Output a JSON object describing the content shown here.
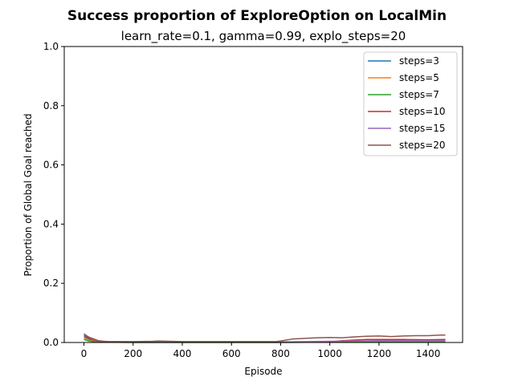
{
  "chart_data": {
    "type": "line",
    "title": "Success proportion of ExploreOption on LocalMin",
    "subtitle": "learn_rate=0.1, gamma=0.99, explo_steps=20",
    "xlabel": "Episode",
    "ylabel": "Proportion of Global Goal reached",
    "xlim": [
      -80,
      1540
    ],
    "ylim": [
      0,
      1.0
    ],
    "xticks": [
      "0",
      "200",
      "400",
      "600",
      "800",
      "1000",
      "1200",
      "1400"
    ],
    "yticks": [
      "0.0",
      "0.2",
      "0.4",
      "0.6",
      "0.8",
      "1.0"
    ],
    "legend_position": "top-right",
    "grid": false,
    "series": [
      {
        "name": "steps=3",
        "color": "#1f77b4",
        "x": [
          0,
          20,
          40,
          60,
          100,
          200,
          400,
          600,
          800,
          1000,
          1100,
          1200,
          1300,
          1400,
          1470
        ],
        "y": [
          0.02,
          0.012,
          0.006,
          0.003,
          0.002,
          0.001,
          0.001,
          0.001,
          0.001,
          0.001,
          0.001,
          0.001,
          0.001,
          0.001,
          0.001
        ]
      },
      {
        "name": "steps=5",
        "color": "#ff7f0e",
        "x": [
          0,
          20,
          40,
          60,
          100,
          200,
          400,
          600,
          800,
          1000,
          1100,
          1200,
          1300,
          1400,
          1470
        ],
        "y": [
          0.015,
          0.008,
          0.004,
          0.002,
          0.001,
          0.001,
          0.001,
          0.001,
          0.001,
          0.002,
          0.002,
          0.002,
          0.002,
          0.002,
          0.002
        ]
      },
      {
        "name": "steps=7",
        "color": "#2ca02c",
        "x": [
          0,
          20,
          40,
          60,
          100,
          200,
          400,
          600,
          800,
          1000,
          1100,
          1200,
          1300,
          1400,
          1470
        ],
        "y": [
          0.01,
          0.005,
          0.003,
          0.001,
          0.001,
          0.0,
          0.0,
          0.0,
          0.0,
          0.001,
          0.001,
          0.001,
          0.001,
          0.001,
          0.001
        ]
      },
      {
        "name": "steps=10",
        "color": "#d62728",
        "x": [
          0,
          20,
          40,
          60,
          100,
          200,
          400,
          600,
          800,
          1000,
          1050,
          1100,
          1150,
          1200,
          1300,
          1400,
          1470
        ],
        "y": [
          0.025,
          0.015,
          0.008,
          0.004,
          0.002,
          0.002,
          0.001,
          0.001,
          0.001,
          0.002,
          0.006,
          0.008,
          0.01,
          0.01,
          0.01,
          0.009,
          0.01
        ]
      },
      {
        "name": "steps=15",
        "color": "#9467bd",
        "x": [
          0,
          20,
          40,
          60,
          100,
          200,
          400,
          600,
          800,
          1000,
          1100,
          1200,
          1300,
          1400,
          1470
        ],
        "y": [
          0.03,
          0.018,
          0.01,
          0.005,
          0.003,
          0.002,
          0.002,
          0.002,
          0.002,
          0.004,
          0.005,
          0.006,
          0.006,
          0.006,
          0.006
        ]
      },
      {
        "name": "steps=20",
        "color": "#8c564b",
        "x": [
          0,
          20,
          40,
          60,
          80,
          100,
          200,
          280,
          300,
          400,
          500,
          600,
          700,
          780,
          800,
          850,
          900,
          950,
          1000,
          1050,
          1100,
          1150,
          1200,
          1250,
          1300,
          1350,
          1400,
          1450,
          1470
        ],
        "y": [
          0.025,
          0.018,
          0.012,
          0.006,
          0.004,
          0.003,
          0.003,
          0.004,
          0.005,
          0.003,
          0.003,
          0.003,
          0.003,
          0.003,
          0.005,
          0.012,
          0.014,
          0.016,
          0.017,
          0.016,
          0.019,
          0.021,
          0.022,
          0.02,
          0.022,
          0.023,
          0.023,
          0.025,
          0.025
        ]
      }
    ]
  }
}
